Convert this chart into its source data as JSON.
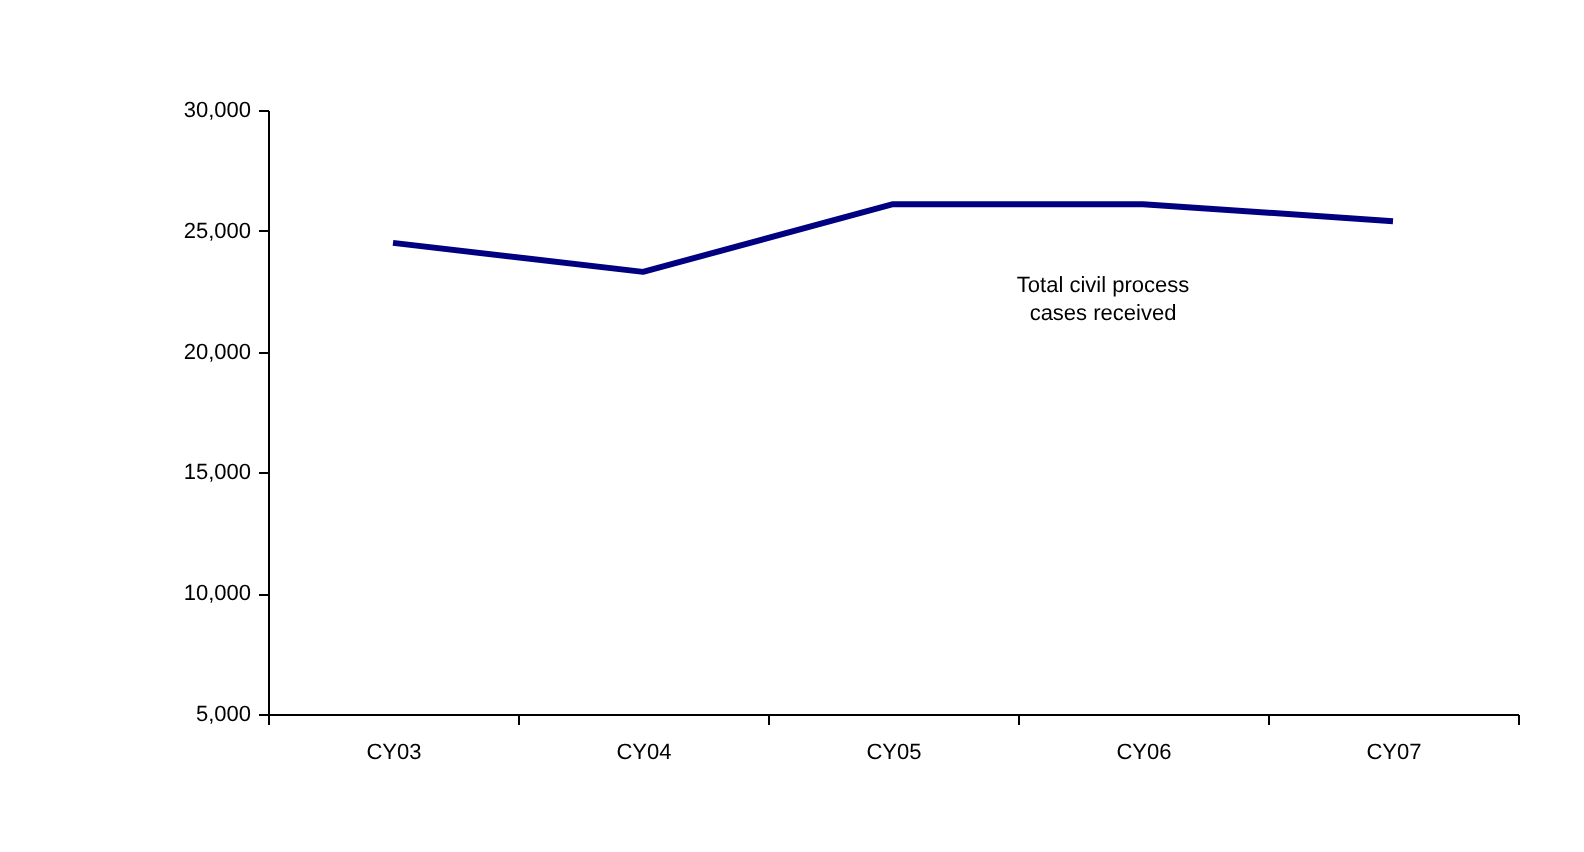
{
  "chart_data": {
    "type": "line",
    "categories": [
      "CY03",
      "CY04",
      "CY05",
      "CY06",
      "CY07"
    ],
    "series": [
      {
        "name": "Total civil process cases received",
        "color": "#000080",
        "values": [
          24500,
          23300,
          26100,
          26100,
          25400
        ]
      }
    ],
    "ylim": [
      5000,
      30000
    ],
    "yticks": [
      {
        "value": 5000,
        "label": "5,000"
      },
      {
        "value": 10000,
        "label": "10,000"
      },
      {
        "value": 15000,
        "label": "15,000"
      },
      {
        "value": 20000,
        "label": "20,000"
      },
      {
        "value": 25000,
        "label": "25,000"
      },
      {
        "value": 30000,
        "label": "30,000"
      }
    ],
    "grid": false,
    "legend": false,
    "marker": "none",
    "line_style": "solid"
  }
}
